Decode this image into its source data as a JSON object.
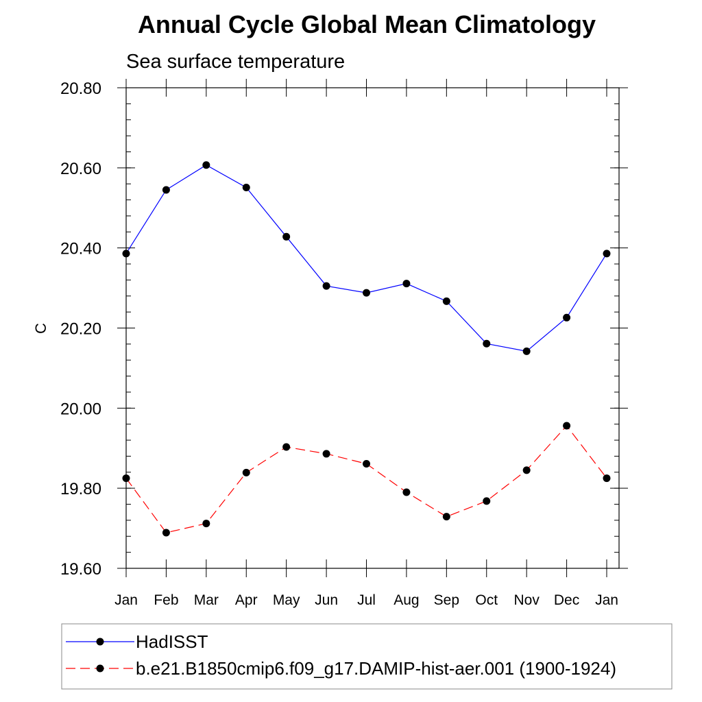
{
  "chart_data": {
    "type": "line",
    "title": "Annual Cycle Global Mean Climatology",
    "subtitle": "Sea surface temperature",
    "xlabel": "",
    "ylabel": "C",
    "categories": [
      "Jan",
      "Feb",
      "Mar",
      "Apr",
      "May",
      "Jun",
      "Jul",
      "Aug",
      "Sep",
      "Oct",
      "Nov",
      "Dec",
      "Jan"
    ],
    "ylim": [
      19.6,
      20.8
    ],
    "yticks": [
      "19.60",
      "19.80",
      "20.00",
      "20.20",
      "20.40",
      "20.60",
      "20.80"
    ],
    "grid": false,
    "legend_placement": "bottom",
    "series": [
      {
        "name": "HadISST",
        "color": "#0000ff",
        "line_style": "solid",
        "marker": "filled-circle",
        "values": [
          20.386,
          20.545,
          20.607,
          20.551,
          20.428,
          20.305,
          20.288,
          20.311,
          20.267,
          20.161,
          20.142,
          20.226,
          20.386
        ]
      },
      {
        "name": "b.e21.B1850cmip6.f09_g17.DAMIP-hist-aer.001 (1900-1924)",
        "color": "#ff0000",
        "line_style": "dashed",
        "marker": "filled-circle",
        "values": [
          19.825,
          19.689,
          19.712,
          19.839,
          19.903,
          19.886,
          19.861,
          19.79,
          19.729,
          19.768,
          19.845,
          19.956,
          19.825
        ]
      }
    ]
  }
}
